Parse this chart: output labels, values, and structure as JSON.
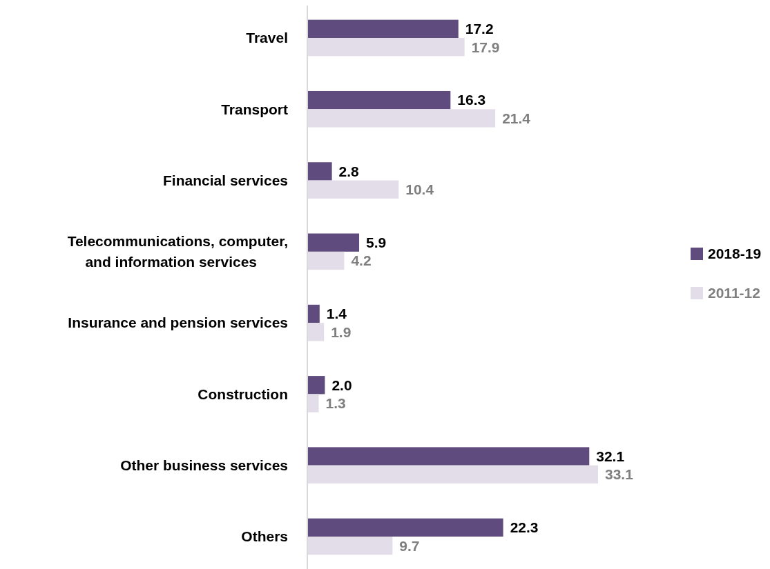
{
  "chart_data": {
    "type": "bar",
    "orientation": "horizontal",
    "legend": "right",
    "categories": [
      "Travel",
      "Transport",
      "Financial services",
      "Telecommunications, computer, and information services",
      "Insurance and pension services",
      "Construction",
      "Other business services",
      "Others"
    ],
    "series": [
      {
        "name": "2018-19",
        "color": "#5f4b7d",
        "values": [
          17.2,
          16.3,
          2.8,
          5.9,
          1.4,
          2.0,
          32.1,
          22.3
        ],
        "value_labels": [
          "17.2",
          "16.3",
          "2.8",
          "5.9",
          "1.4",
          "2.0",
          "32.1",
          "22.3"
        ]
      },
      {
        "name": "2011-12",
        "color": "#e3dde9",
        "values": [
          17.9,
          21.4,
          10.4,
          4.2,
          1.9,
          1.3,
          33.1,
          9.7
        ],
        "value_labels": [
          "17.9",
          "21.4",
          "10.4",
          "4.2",
          "1.9",
          "1.3",
          "33.1",
          "9.7"
        ]
      }
    ]
  }
}
